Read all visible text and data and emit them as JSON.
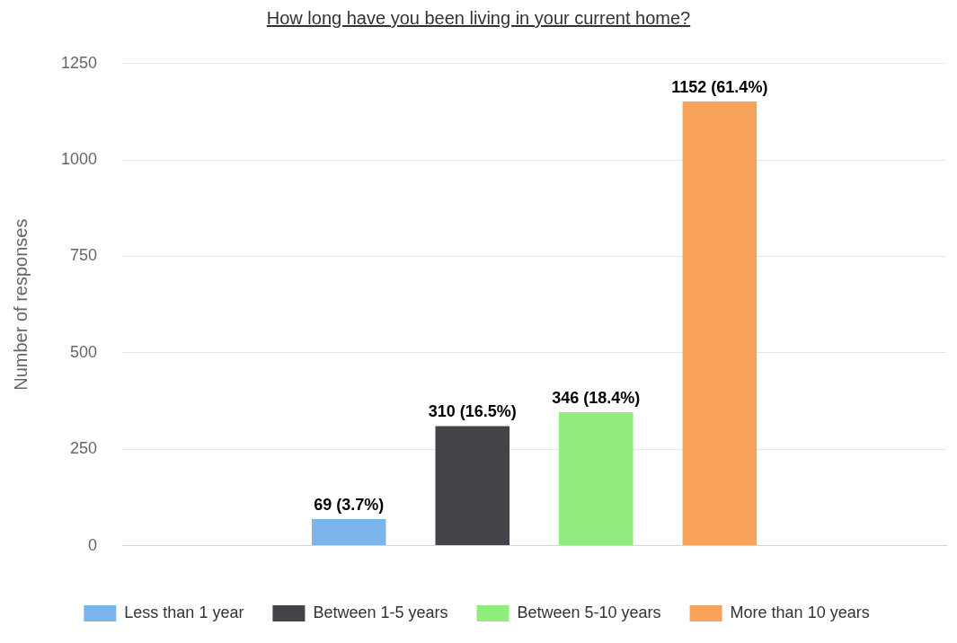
{
  "chart_data": {
    "type": "bar",
    "title": "How long have you been living in your current home?",
    "ylabel": "Number of responses",
    "categories": [
      null
    ],
    "series": [
      {
        "name": "Less than 1 year",
        "color": "#7cb5ec",
        "values": [
          69
        ],
        "value_labels": [
          "69 (3.7%)"
        ]
      },
      {
        "name": "Between 1-5 years",
        "color": "#434348",
        "values": [
          310
        ],
        "value_labels": [
          "310 (16.5%)"
        ]
      },
      {
        "name": "Between 5-10 years",
        "color": "#90ed7d",
        "values": [
          346
        ],
        "value_labels": [
          "346 (18.4%)"
        ]
      },
      {
        "name": "More than 10 years",
        "color": "#f7a35c",
        "values": [
          1152
        ],
        "value_labels": [
          "1152 (61.4%)"
        ]
      }
    ],
    "ylim": [
      0,
      1250
    ],
    "yticks": [
      0,
      250,
      500,
      750,
      1000,
      1250
    ],
    "grid": "y",
    "legend": "bottom"
  }
}
